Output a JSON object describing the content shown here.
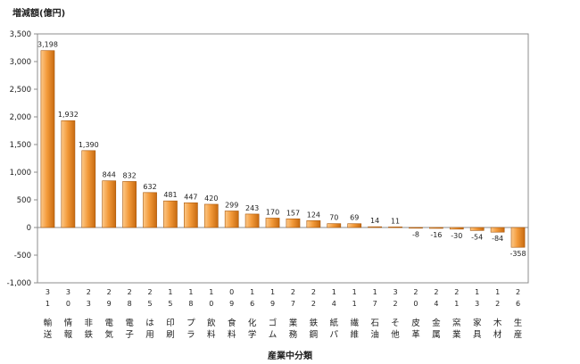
{
  "chart_data": {
    "type": "bar",
    "ylabel": "増減額(億円)",
    "xlabel": "産業中分類",
    "ylim": [
      -1000,
      3500
    ],
    "ytick_step": 500,
    "grid": false,
    "legend": "none",
    "colors": {
      "bar_top": "#FCC98A",
      "bar_mid": "#F39A3A",
      "bar_bottom": "#C76A10",
      "bar_stroke": "#A9580C"
    },
    "categories": [
      {
        "code": [
          "3",
          "1"
        ],
        "name": [
          "輸",
          "送"
        ]
      },
      {
        "code": [
          "3",
          "0"
        ],
        "name": [
          "情",
          "報"
        ]
      },
      {
        "code": [
          "2",
          "3"
        ],
        "name": [
          "非",
          "鉄"
        ]
      },
      {
        "code": [
          "2",
          "9"
        ],
        "name": [
          "電",
          "気"
        ]
      },
      {
        "code": [
          "2",
          "8"
        ],
        "name": [
          "電",
          "子"
        ]
      },
      {
        "code": [
          "2",
          "5"
        ],
        "name": [
          "は",
          "用"
        ]
      },
      {
        "code": [
          "1",
          "5"
        ],
        "name": [
          "印",
          "刷"
        ]
      },
      {
        "code": [
          "1",
          "8"
        ],
        "name": [
          "プ",
          "ラ"
        ]
      },
      {
        "code": [
          "1",
          "0"
        ],
        "name": [
          "飲",
          "料"
        ]
      },
      {
        "code": [
          "0",
          "9"
        ],
        "name": [
          "食",
          "料"
        ]
      },
      {
        "code": [
          "1",
          "6"
        ],
        "name": [
          "化",
          "学"
        ]
      },
      {
        "code": [
          "1",
          "9"
        ],
        "name": [
          "ゴ",
          "ム"
        ]
      },
      {
        "code": [
          "2",
          "7"
        ],
        "name": [
          "業",
          "務"
        ]
      },
      {
        "code": [
          "2",
          "2"
        ],
        "name": [
          "鉄",
          "鋼"
        ]
      },
      {
        "code": [
          "1",
          "4"
        ],
        "name": [
          "紙",
          "パ"
        ]
      },
      {
        "code": [
          "1",
          "1"
        ],
        "name": [
          "繊",
          "維"
        ]
      },
      {
        "code": [
          "1",
          "7"
        ],
        "name": [
          "石",
          "油"
        ]
      },
      {
        "code": [
          "3",
          "2"
        ],
        "name": [
          "そ",
          "他"
        ]
      },
      {
        "code": [
          "2",
          "0"
        ],
        "name": [
          "皮",
          "革"
        ]
      },
      {
        "code": [
          "2",
          "4"
        ],
        "name": [
          "金",
          "属"
        ]
      },
      {
        "code": [
          "2",
          "1"
        ],
        "name": [
          "窯",
          "業"
        ]
      },
      {
        "code": [
          "1",
          "3"
        ],
        "name": [
          "家",
          "具"
        ]
      },
      {
        "code": [
          "1",
          "2"
        ],
        "name": [
          "木",
          "材"
        ]
      },
      {
        "code": [
          "2",
          "6"
        ],
        "name": [
          "生",
          "産"
        ]
      }
    ],
    "values": [
      3198,
      1932,
      1390,
      844,
      832,
      632,
      481,
      447,
      420,
      299,
      243,
      170,
      157,
      124,
      70,
      69,
      14,
      11,
      -8,
      -16,
      -30,
      -54,
      -84,
      -358
    ],
    "labels": [
      "3,198",
      "1,932",
      "1,390",
      "844",
      "832",
      "632",
      "481",
      "447",
      "420",
      "299",
      "243",
      "170",
      "157",
      "124",
      "70",
      "69",
      "14",
      "11",
      "-8",
      "-16",
      "-30",
      "-54",
      "-84",
      "-358"
    ]
  }
}
